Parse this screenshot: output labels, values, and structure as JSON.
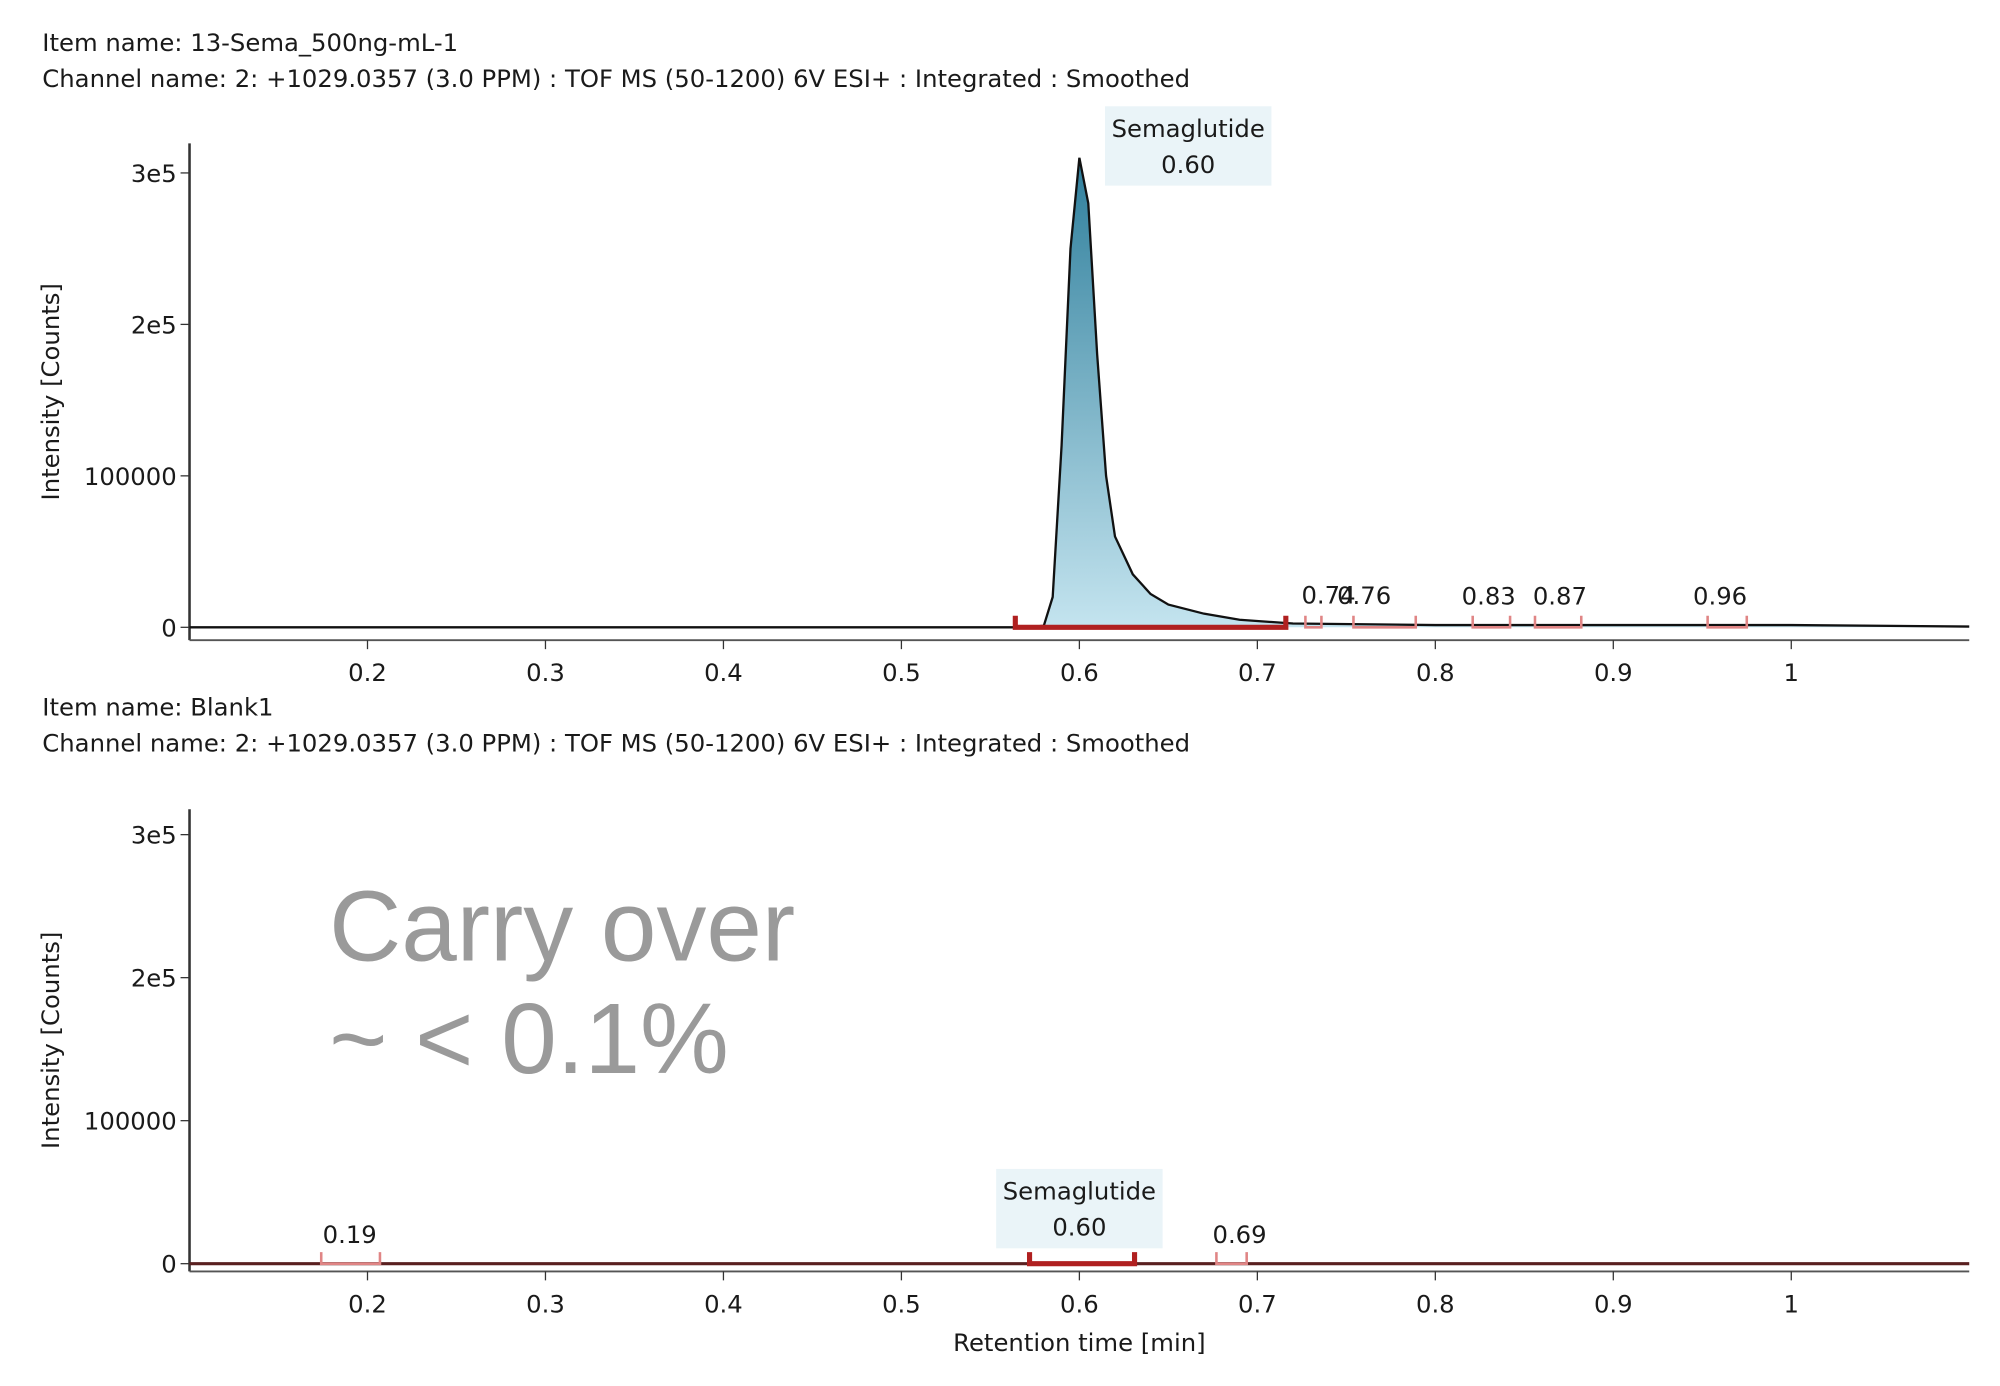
{
  "chart_data": [
    {
      "type": "area",
      "title": "Item name: 13-Sema_500ng-mL-1",
      "subtitle": "Channel name: 2: +1029.0357 (3.0 PPM) : TOF MS (50-1200) 6V ESI+ : Integrated : Smoothed",
      "y_label": "Intensity [Counts]",
      "color": "#4a97b4",
      "x": [
        0.1,
        0.3,
        0.5,
        0.57,
        0.58,
        0.585,
        0.59,
        0.595,
        0.6,
        0.605,
        0.61,
        0.615,
        0.62,
        0.63,
        0.64,
        0.65,
        0.67,
        0.69,
        0.72,
        0.8,
        0.9,
        1.0,
        1.1
      ],
      "values": [
        0,
        0,
        0,
        0,
        1000,
        20000,
        120000,
        250000,
        310000,
        280000,
        180000,
        100000,
        60000,
        35000,
        22000,
        15000,
        9000,
        5000,
        2500,
        1500,
        1500,
        1500,
        500
      ],
      "xlim": [
        0.1,
        1.1
      ],
      "xticks": [
        0.2,
        0.3,
        0.4,
        0.5,
        0.6,
        0.7,
        0.8,
        0.9,
        1
      ],
      "ylim": [
        -8500,
        319500
      ],
      "yticks": [
        0,
        100000,
        {
          "value": 200000,
          "label": "2e5"
        },
        {
          "value": 300000,
          "label": "3e5"
        }
      ],
      "peaks": [
        {
          "name": "Semaglutide",
          "rt": 0.6,
          "label": "0.60",
          "start": 0.564,
          "end": 0.716
        },
        {
          "rt": 0.74,
          "label": "0.74",
          "start": 0.727,
          "end": 0.736
        },
        {
          "rt": 0.76,
          "label": "0.76",
          "start": 0.754,
          "end": 0.789
        },
        {
          "rt": 0.83,
          "label": "0.83",
          "start": 0.821,
          "end": 0.842
        },
        {
          "rt": 0.87,
          "label": "0.87",
          "start": 0.856,
          "end": 0.882
        },
        {
          "rt": 0.96,
          "label": "0.96",
          "start": 0.953,
          "end": 0.975
        }
      ]
    },
    {
      "type": "area",
      "title": "Item name: Blank1",
      "subtitle": "Channel name: 2: +1029.0357 (3.0 PPM) : TOF MS (50-1200) 6V ESI+ : Integrated : Smoothed",
      "y_label": "Intensity [Counts]",
      "x_label": "Retention time [min]",
      "annotation": [
        "Carry over",
        "~ < 0.1%"
      ],
      "color": "#4a97b4",
      "x": [
        0.1,
        0.3,
        0.5,
        0.7,
        0.9,
        1.1
      ],
      "values": [
        0,
        0,
        0,
        0,
        0,
        0
      ],
      "xlim": [
        0.1,
        1.1
      ],
      "xticks": [
        0.2,
        0.3,
        0.4,
        0.5,
        0.6,
        0.7,
        0.8,
        0.9,
        1
      ],
      "ylim": [
        -5400,
        317800
      ],
      "yticks": [
        0,
        100000,
        {
          "value": 200000,
          "label": "2e5"
        },
        {
          "value": 300000,
          "label": "3e5"
        }
      ],
      "peaks": [
        {
          "rt": 0.19,
          "label": "0.19",
          "start": 0.174,
          "end": 0.207
        },
        {
          "name": "Semaglutide",
          "rt": 0.6,
          "label": "0.60",
          "start": 0.572,
          "end": 0.631
        },
        {
          "rt": 0.69,
          "label": "0.69",
          "start": 0.677,
          "end": 0.694
        }
      ]
    }
  ]
}
